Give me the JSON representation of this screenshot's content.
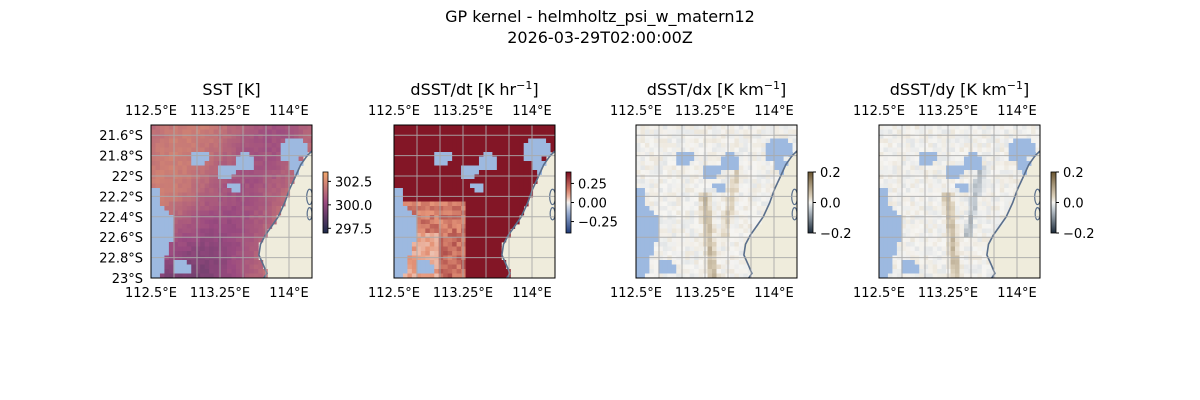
{
  "figure": {
    "title_line1": "GP kernel - helmholtz_psi_w_matern12",
    "title_line2": "2026-03-29T02:00:00Z"
  },
  "colors": {
    "land": "#efecdc",
    "ocean_mask": "#9db9e0",
    "gridline": "#aaaaaa",
    "coastline": "#5a6f8c",
    "thermal_low": "#1b2a4a",
    "thermal_mid": "#9b4a80",
    "thermal_high": "#f3a86c",
    "balance_neg": "#1f3a78",
    "balance_pos": "#7a0a1e",
    "diff_low": "#1c2b3a",
    "diff_high": "#6a5530"
  },
  "chart_data": [
    {
      "type": "heatmap",
      "title": "SST [K]",
      "variable": "sst",
      "colormap": "thermal",
      "lon_range": [
        112.5,
        114.25
      ],
      "lat_range": [
        -23.0,
        -21.5
      ],
      "xticks": [
        "112.5°E",
        "113.25°E",
        "114°E"
      ],
      "yticks": [
        "21.6°S",
        "21.8°S",
        "22°S",
        "22.2°S",
        "22.4°S",
        "22.6°S",
        "22.8°S",
        "23°S"
      ],
      "colorbar": {
        "min": 297.0,
        "max": 303.5,
        "ticks": [
          "302.5",
          "300.0",
          "297.5"
        ],
        "tick_values": [
          302.5,
          300.0,
          297.5
        ]
      }
    },
    {
      "type": "heatmap",
      "title": "dSST/dt [K hr",
      "title_sup": "−1",
      "title_end": "]",
      "variable": "dsst_dt",
      "colormap": "balance",
      "lon_range": [
        112.5,
        114.25
      ],
      "lat_range": [
        -23.0,
        -21.5
      ],
      "xticks": [
        "112.5°E",
        "113.25°E",
        "114°E"
      ],
      "colorbar": {
        "min": -0.4,
        "max": 0.4,
        "ticks": [
          "0.25",
          "0.00",
          "−0.25"
        ],
        "tick_values": [
          0.25,
          0.0,
          -0.25
        ]
      }
    },
    {
      "type": "heatmap",
      "title": "dSST/dx [K km",
      "title_sup": "−1",
      "title_end": "]",
      "variable": "dsst_dx",
      "colormap": "diff",
      "lon_range": [
        112.5,
        114.25
      ],
      "lat_range": [
        -23.0,
        -21.5
      ],
      "xticks": [
        "112.5°E",
        "113.25°E",
        "114°E"
      ],
      "colorbar": {
        "min": -0.2,
        "max": 0.2,
        "ticks": [
          "0.2",
          "0.0",
          "−0.2"
        ],
        "tick_values": [
          0.2,
          0.0,
          -0.2
        ]
      }
    },
    {
      "type": "heatmap",
      "title": "dSST/dy [K km",
      "title_sup": "−1",
      "title_end": "]",
      "variable": "dsst_dy",
      "colormap": "diff",
      "lon_range": [
        112.5,
        114.25
      ],
      "lat_range": [
        -23.0,
        -21.5
      ],
      "xticks": [
        "112.5°E",
        "113.25°E",
        "114°E"
      ],
      "colorbar": {
        "min": -0.2,
        "max": 0.2,
        "ticks": [
          "0.2",
          "0.0",
          "−0.2"
        ],
        "tick_values": [
          0.2,
          0.0,
          -0.2
        ]
      }
    }
  ]
}
